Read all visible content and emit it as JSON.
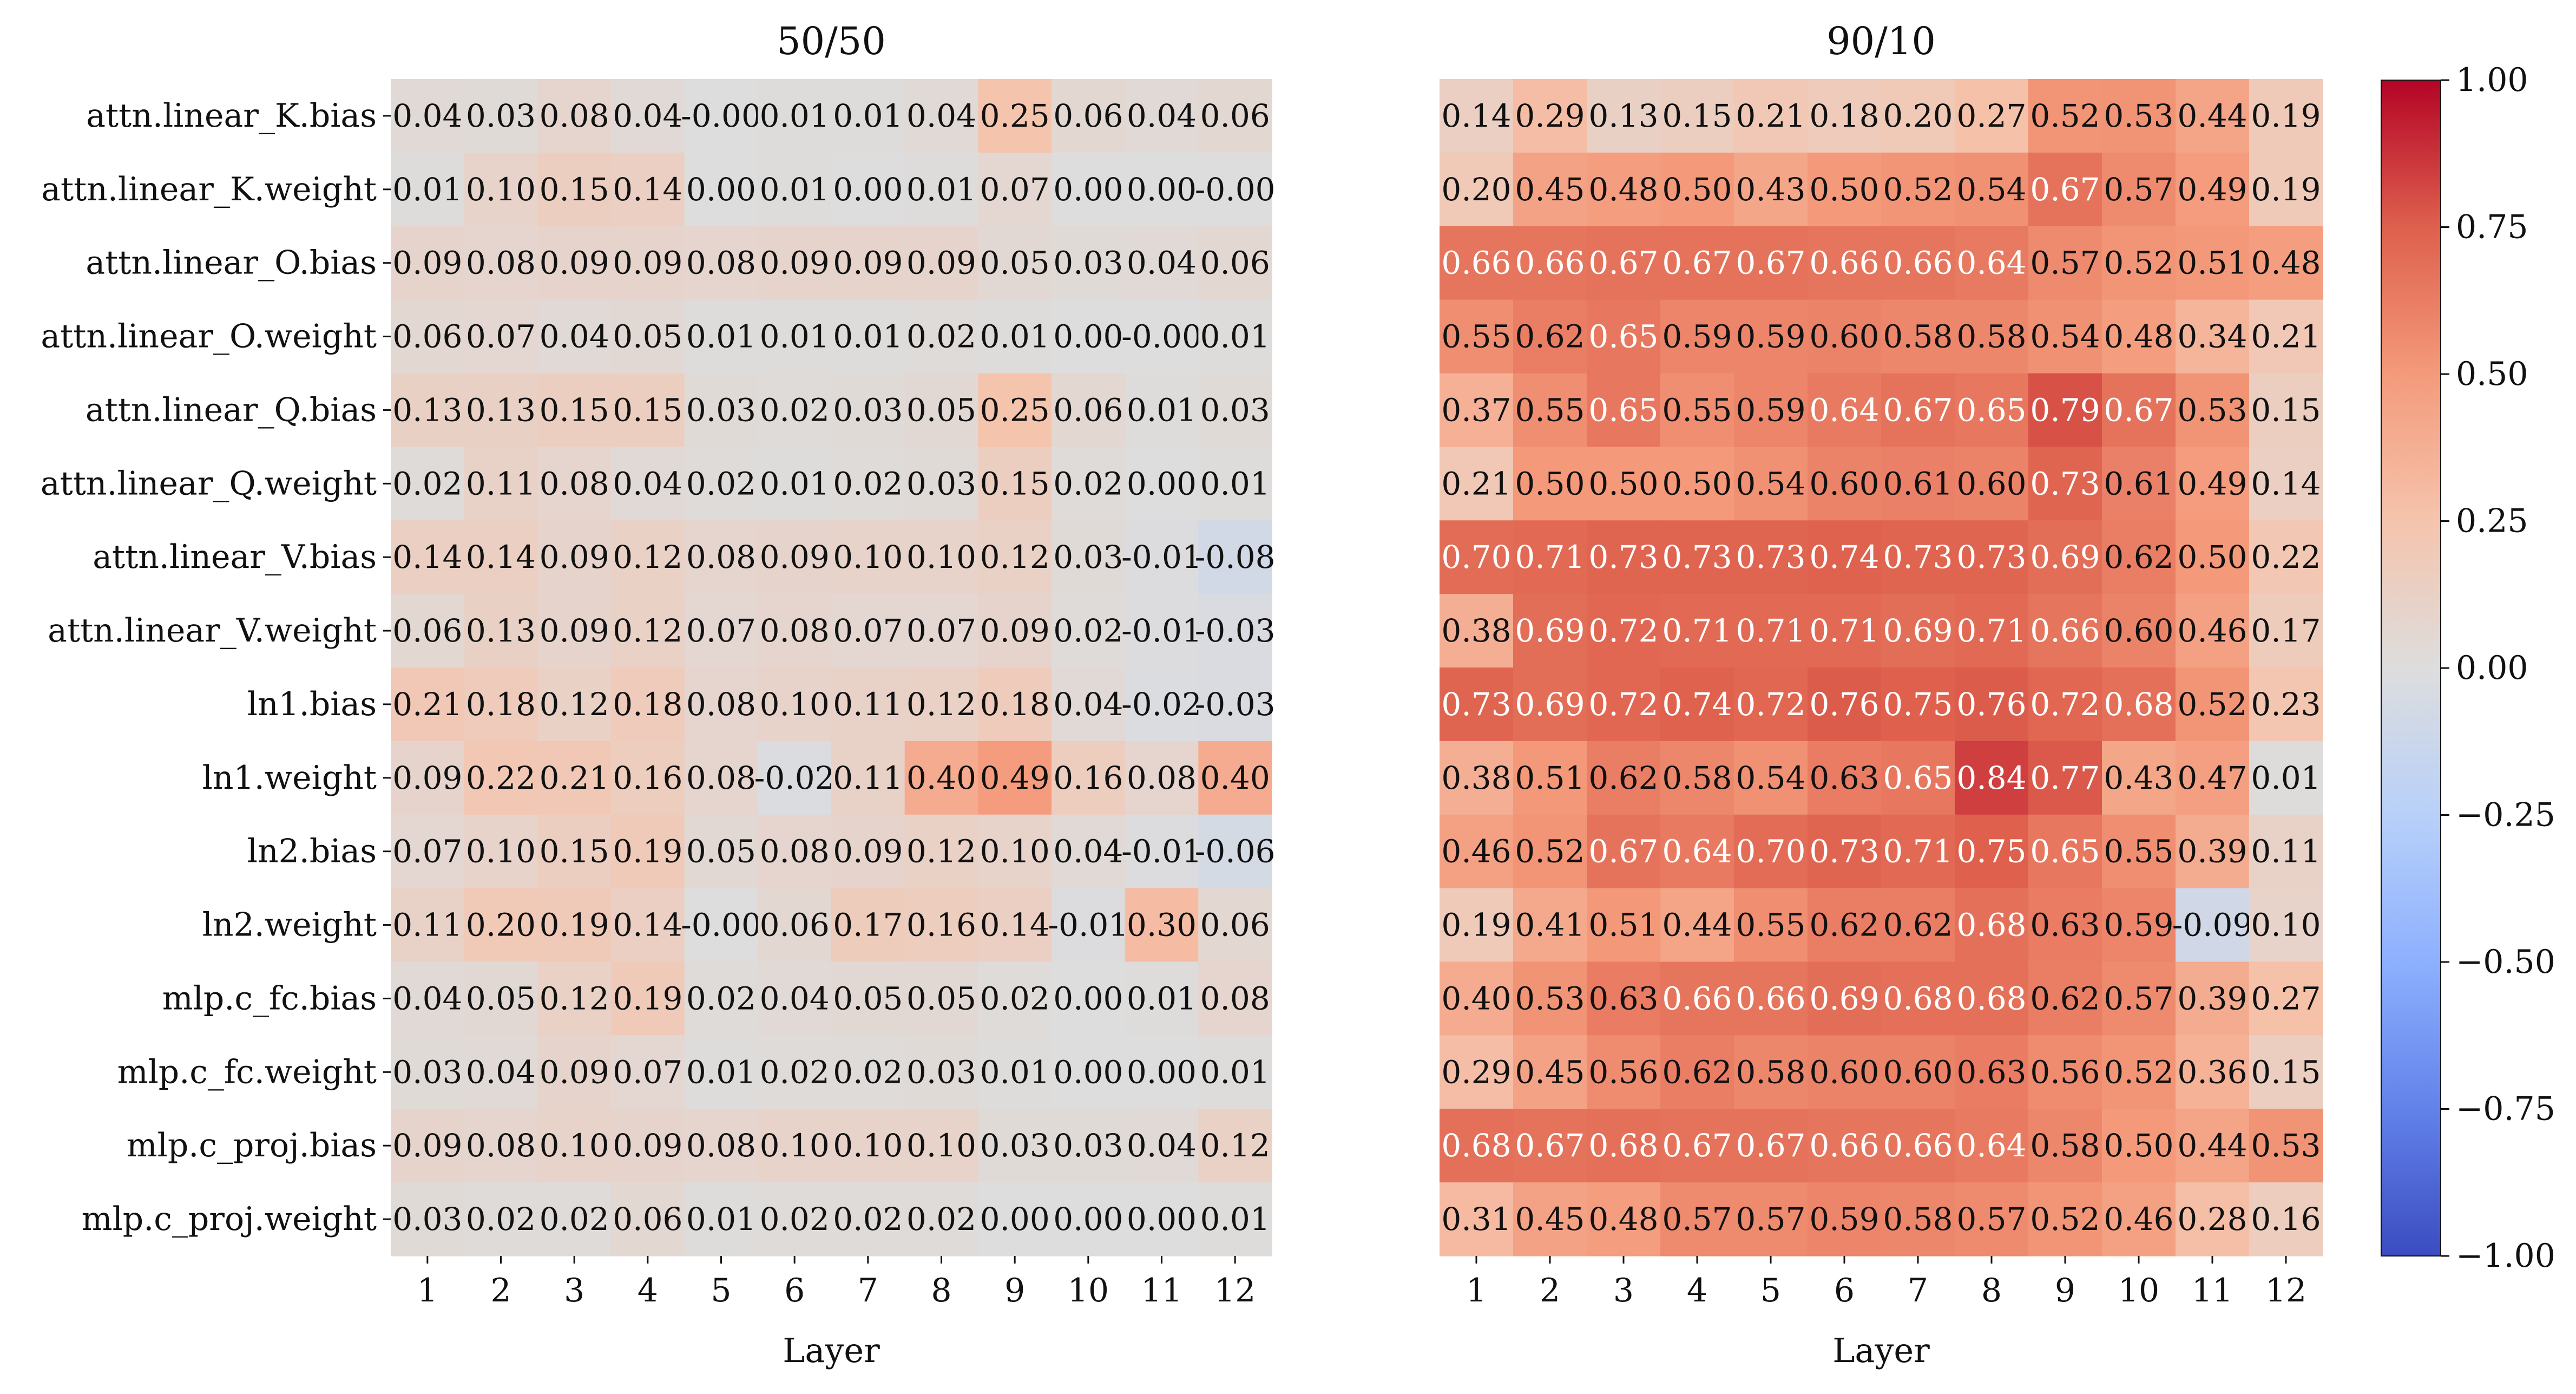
{
  "chart_data": {
    "type": "heatmap",
    "colormap": "coolwarm",
    "vmin": -1.0,
    "vmax": 1.0,
    "rows": [
      "attn.linear_K.bias",
      "attn.linear_K.weight",
      "attn.linear_O.bias",
      "attn.linear_O.weight",
      "attn.linear_Q.bias",
      "attn.linear_Q.weight",
      "attn.linear_V.bias",
      "attn.linear_V.weight",
      "ln1.bias",
      "ln1.weight",
      "ln2.bias",
      "ln2.weight",
      "mlp.c_fc.bias",
      "mlp.c_fc.weight",
      "mlp.c_proj.bias",
      "mlp.c_proj.weight"
    ],
    "columns": [
      1,
      2,
      3,
      4,
      5,
      6,
      7,
      8,
      9,
      10,
      11,
      12
    ],
    "xlabel": "Layer",
    "colorbar_ticks": [
      "1.00",
      "0.75",
      "0.50",
      "0.25",
      "0.00",
      "−0.25",
      "−0.50",
      "−0.75",
      "−1.00"
    ],
    "panels": [
      {
        "title": "50/50",
        "values": [
          [
            "0.04",
            "0.03",
            "0.08",
            "0.04",
            "-0.00",
            "0.01",
            "0.01",
            "0.04",
            "0.25",
            "0.06",
            "0.04",
            "0.06"
          ],
          [
            "0.01",
            "0.10",
            "0.15",
            "0.14",
            "0.00",
            "0.01",
            "0.00",
            "0.01",
            "0.07",
            "0.00",
            "0.00",
            "-0.00"
          ],
          [
            "0.09",
            "0.08",
            "0.09",
            "0.09",
            "0.08",
            "0.09",
            "0.09",
            "0.09",
            "0.05",
            "0.03",
            "0.04",
            "0.06"
          ],
          [
            "0.06",
            "0.07",
            "0.04",
            "0.05",
            "0.01",
            "0.01",
            "0.01",
            "0.02",
            "0.01",
            "0.00",
            "-0.00",
            "0.01"
          ],
          [
            "0.13",
            "0.13",
            "0.15",
            "0.15",
            "0.03",
            "0.02",
            "0.03",
            "0.05",
            "0.25",
            "0.06",
            "0.01",
            "0.03"
          ],
          [
            "0.02",
            "0.11",
            "0.08",
            "0.04",
            "0.02",
            "0.01",
            "0.02",
            "0.03",
            "0.15",
            "0.02",
            "0.00",
            "0.01"
          ],
          [
            "0.14",
            "0.14",
            "0.09",
            "0.12",
            "0.08",
            "0.09",
            "0.10",
            "0.10",
            "0.12",
            "0.03",
            "-0.01",
            "-0.08"
          ],
          [
            "0.06",
            "0.13",
            "0.09",
            "0.12",
            "0.07",
            "0.08",
            "0.07",
            "0.07",
            "0.09",
            "0.02",
            "-0.01",
            "-0.03"
          ],
          [
            "0.21",
            "0.18",
            "0.12",
            "0.18",
            "0.08",
            "0.10",
            "0.11",
            "0.12",
            "0.18",
            "0.04",
            "-0.02",
            "-0.03"
          ],
          [
            "0.09",
            "0.22",
            "0.21",
            "0.16",
            "0.08",
            "-0.02",
            "0.11",
            "0.40",
            "0.49",
            "0.16",
            "0.08",
            "0.40"
          ],
          [
            "0.07",
            "0.10",
            "0.15",
            "0.19",
            "0.05",
            "0.08",
            "0.09",
            "0.12",
            "0.10",
            "0.04",
            "-0.01",
            "-0.06"
          ],
          [
            "0.11",
            "0.20",
            "0.19",
            "0.14",
            "-0.00",
            "0.06",
            "0.17",
            "0.16",
            "0.14",
            "-0.01",
            "0.30",
            "0.06"
          ],
          [
            "0.04",
            "0.05",
            "0.12",
            "0.19",
            "0.02",
            "0.04",
            "0.05",
            "0.05",
            "0.02",
            "0.00",
            "0.01",
            "0.08"
          ],
          [
            "0.03",
            "0.04",
            "0.09",
            "0.07",
            "0.01",
            "0.02",
            "0.02",
            "0.03",
            "0.01",
            "0.00",
            "0.00",
            "0.01"
          ],
          [
            "0.09",
            "0.08",
            "0.10",
            "0.09",
            "0.08",
            "0.10",
            "0.10",
            "0.10",
            "0.03",
            "0.03",
            "0.04",
            "0.12"
          ],
          [
            "0.03",
            "0.02",
            "0.02",
            "0.06",
            "0.01",
            "0.02",
            "0.02",
            "0.02",
            "0.00",
            "0.00",
            "0.00",
            "0.01"
          ]
        ]
      },
      {
        "title": "90/10",
        "values": [
          [
            "0.14",
            "0.29",
            "0.13",
            "0.15",
            "0.21",
            "0.18",
            "0.20",
            "0.27",
            "0.52",
            "0.53",
            "0.44",
            "0.19"
          ],
          [
            "0.20",
            "0.45",
            "0.48",
            "0.50",
            "0.43",
            "0.50",
            "0.52",
            "0.54",
            "0.67",
            "0.57",
            "0.49",
            "0.19"
          ],
          [
            "0.66",
            "0.66",
            "0.67",
            "0.67",
            "0.67",
            "0.66",
            "0.66",
            "0.64",
            "0.57",
            "0.52",
            "0.51",
            "0.48"
          ],
          [
            "0.55",
            "0.62",
            "0.65",
            "0.59",
            "0.59",
            "0.60",
            "0.58",
            "0.58",
            "0.54",
            "0.48",
            "0.34",
            "0.21"
          ],
          [
            "0.37",
            "0.55",
            "0.65",
            "0.55",
            "0.59",
            "0.64",
            "0.67",
            "0.65",
            "0.79",
            "0.67",
            "0.53",
            "0.15"
          ],
          [
            "0.21",
            "0.50",
            "0.50",
            "0.50",
            "0.54",
            "0.60",
            "0.61",
            "0.60",
            "0.73",
            "0.61",
            "0.49",
            "0.14"
          ],
          [
            "0.70",
            "0.71",
            "0.73",
            "0.73",
            "0.73",
            "0.74",
            "0.73",
            "0.73",
            "0.69",
            "0.62",
            "0.50",
            "0.22"
          ],
          [
            "0.38",
            "0.69",
            "0.72",
            "0.71",
            "0.71",
            "0.71",
            "0.69",
            "0.71",
            "0.66",
            "0.60",
            "0.46",
            "0.17"
          ],
          [
            "0.73",
            "0.69",
            "0.72",
            "0.74",
            "0.72",
            "0.76",
            "0.75",
            "0.76",
            "0.72",
            "0.68",
            "0.52",
            "0.23"
          ],
          [
            "0.38",
            "0.51",
            "0.62",
            "0.58",
            "0.54",
            "0.63",
            "0.65",
            "0.84",
            "0.77",
            "0.43",
            "0.47",
            "0.01"
          ],
          [
            "0.46",
            "0.52",
            "0.67",
            "0.64",
            "0.70",
            "0.73",
            "0.71",
            "0.75",
            "0.65",
            "0.55",
            "0.39",
            "0.11"
          ],
          [
            "0.19",
            "0.41",
            "0.51",
            "0.44",
            "0.55",
            "0.62",
            "0.62",
            "0.68",
            "0.63",
            "0.59",
            "-0.09",
            "0.10"
          ],
          [
            "0.40",
            "0.53",
            "0.63",
            "0.66",
            "0.66",
            "0.69",
            "0.68",
            "0.68",
            "0.62",
            "0.57",
            "0.39",
            "0.27"
          ],
          [
            "0.29",
            "0.45",
            "0.56",
            "0.62",
            "0.58",
            "0.60",
            "0.60",
            "0.63",
            "0.56",
            "0.52",
            "0.36",
            "0.15"
          ],
          [
            "0.68",
            "0.67",
            "0.68",
            "0.67",
            "0.67",
            "0.66",
            "0.66",
            "0.64",
            "0.58",
            "0.50",
            "0.44",
            "0.53"
          ],
          [
            "0.31",
            "0.45",
            "0.48",
            "0.57",
            "0.57",
            "0.59",
            "0.58",
            "0.57",
            "0.52",
            "0.46",
            "0.28",
            "0.16"
          ]
        ]
      }
    ]
  }
}
